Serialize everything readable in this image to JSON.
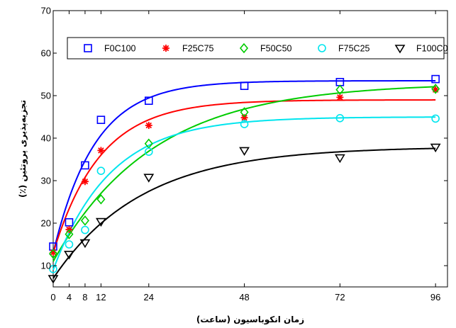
{
  "chart_data": {
    "type": "scatter",
    "xlabel": "زمان انکوباسیون (ساعت)",
    "ylabel": "تجزیه‌پذیری پروتئین (٪)",
    "xlim": [
      0,
      99
    ],
    "ylim": [
      5,
      70
    ],
    "x_ticks": [
      0,
      4,
      8,
      12,
      24,
      48,
      72,
      96
    ],
    "y_ticks": [
      10,
      20,
      30,
      40,
      50,
      60,
      70
    ],
    "grid": false,
    "legend_position": "top",
    "x": [
      0,
      4,
      8,
      12,
      24,
      48,
      72,
      96
    ],
    "series": [
      {
        "name": "F0C100",
        "marker": "square",
        "color": "#0000ff",
        "values": [
          14.5,
          20.2,
          33.6,
          44.3,
          48.8,
          52.3,
          53.2,
          53.9
        ],
        "fit": {
          "a": 13,
          "b": 40.5,
          "c": 0.096
        }
      },
      {
        "name": "F25C75",
        "marker": "star",
        "color": "#ff0000",
        "values": [
          13.1,
          18.5,
          29.8,
          37.1,
          43.0,
          44.8,
          49.6,
          51.4
        ],
        "fit": {
          "a": 13,
          "b": 36.0,
          "c": 0.085
        }
      },
      {
        "name": "F50C50",
        "marker": "diamond",
        "color": "#00cc00",
        "values": [
          12.8,
          17.4,
          20.6,
          25.6,
          38.7,
          46.1,
          51.4,
          51.6
        ],
        "fit": {
          "a": 11,
          "b": 42.0,
          "c": 0.04
        }
      },
      {
        "name": "F75C25",
        "marker": "circle",
        "color": "#00e5ee",
        "values": [
          9.2,
          15.0,
          18.4,
          32.3,
          36.8,
          43.3,
          44.7,
          44.6
        ],
        "fit": {
          "a": 9,
          "b": 36.0,
          "c": 0.07
        }
      },
      {
        "name": "F100C0",
        "marker": "triangle-down",
        "color": "#000000",
        "values": [
          7.0,
          12.7,
          15.4,
          20.4,
          30.8,
          37.1,
          35.4,
          37.9
        ],
        "fit": {
          "a": 7,
          "b": 31.0,
          "c": 0.045
        }
      }
    ]
  }
}
